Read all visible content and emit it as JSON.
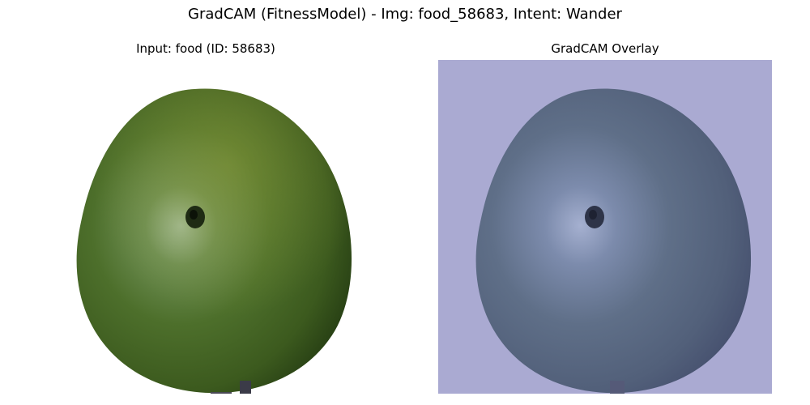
{
  "figure": {
    "suptitle": "GradCAM (FitnessModel) - Img: food_58683, Intent: Wander"
  },
  "panels": [
    {
      "title": "Input: food (ID: 58683)",
      "image": "green-fruit-photo",
      "background_color": "#ffffff",
      "fruit_color": "#4f6f2c"
    },
    {
      "title": "GradCAM Overlay",
      "image": "green-fruit-gradcam-overlay",
      "background_color": "#aaaad2",
      "fruit_color": "#5e6e86"
    }
  ]
}
